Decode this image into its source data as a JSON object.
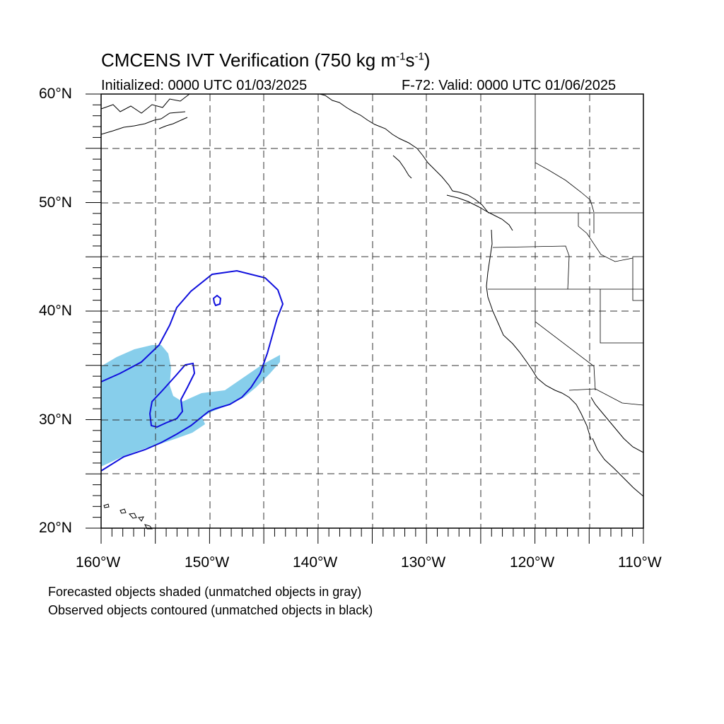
{
  "title": {
    "main": "CMCENS IVT Verification (750 kg m",
    "exp1": "-1",
    "mid": "s",
    "exp2": "-1",
    "end": ")"
  },
  "initialized": "Initialized: 0000 UTC 01/03/2025",
  "valid": "F-72: Valid: 0000 UTC 01/06/2025",
  "lat_labels": [
    "60°N",
    "50°N",
    "40°N",
    "30°N",
    "20°N"
  ],
  "lon_labels": [
    "160°W",
    "150°W",
    "140°W",
    "130°W",
    "120°W",
    "110°W"
  ],
  "caption": {
    "line1": "Forecasted objects shaded (unmatched objects in gray)",
    "line2": "Observed objects contoured (unmatched objects in black)"
  },
  "colors": {
    "forecast_fill": "#87ceeb",
    "observed_contour": "#1010dd",
    "grid": "#333333",
    "coast": "#000000"
  }
}
